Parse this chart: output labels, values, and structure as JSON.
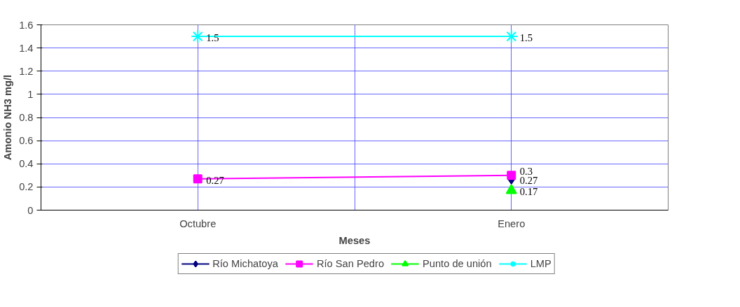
{
  "chart_data": {
    "type": "line",
    "xlabel": "Meses",
    "ylabel": "Amonio NH3 mg/l",
    "categories": [
      "Octubre",
      "Enero"
    ],
    "series": [
      {
        "name": "Río Michatoya",
        "color": "#000080",
        "marker": "diamond",
        "values": [
          null,
          0.27
        ]
      },
      {
        "name": "Río San Pedro",
        "color": "#ff00ff",
        "marker": "square",
        "values": [
          0.27,
          0.3
        ]
      },
      {
        "name": "Punto de unión",
        "color": "#00ff00",
        "marker": "triangle",
        "values": [
          null,
          0.17
        ]
      },
      {
        "name": "LMP",
        "color": "#00ffff",
        "marker": "cross",
        "values": [
          1.5,
          1.5
        ]
      }
    ],
    "ylim": [
      0,
      1.6
    ],
    "yticks": [
      0,
      0.2,
      0.4,
      0.6,
      0.8,
      1,
      1.2,
      1.4,
      1.6
    ],
    "grid": true,
    "legend": "bottom",
    "data_labels": true
  }
}
